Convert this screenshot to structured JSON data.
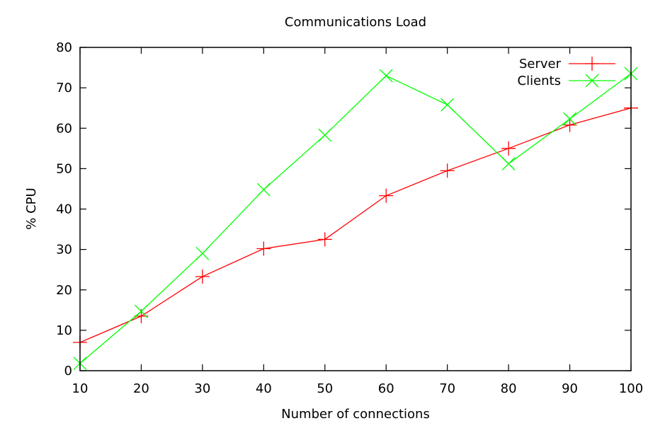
{
  "chart_data": {
    "type": "line",
    "title": "Communications Load",
    "xlabel": "Number of connections",
    "ylabel": "% CPU",
    "x": [
      10,
      20,
      30,
      40,
      50,
      60,
      70,
      80,
      90,
      100
    ],
    "xlim": [
      10,
      100
    ],
    "ylim": [
      0,
      80
    ],
    "xticks": [
      10,
      20,
      30,
      40,
      50,
      60,
      70,
      80,
      90,
      100
    ],
    "yticks": [
      0,
      10,
      20,
      30,
      40,
      50,
      60,
      70,
      80
    ],
    "grid": false,
    "legend_position": "top-right",
    "series": [
      {
        "name": "Server",
        "color": "#ff0000",
        "marker": "plus",
        "values": [
          7.0,
          13.5,
          23.3,
          30.2,
          32.5,
          43.3,
          49.5,
          55.0,
          60.8,
          65.0
        ]
      },
      {
        "name": "Clients",
        "color": "#00ff00",
        "marker": "cross",
        "values": [
          1.8,
          14.7,
          29.0,
          44.8,
          58.3,
          73.0,
          65.8,
          51.2,
          62.3,
          73.5
        ]
      }
    ]
  }
}
